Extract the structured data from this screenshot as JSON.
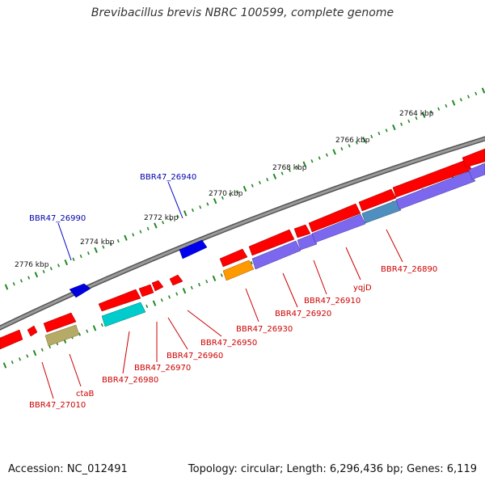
{
  "title": "Brevibacillus brevis NBRC 100599, complete genome",
  "footer": {
    "accession": "Accession: NC_012491",
    "summary": "Topology: circular; Length: 6,296,436 bp; Genes: 6,119"
  },
  "colors": {
    "forward_gene": "#ff0000",
    "reverse_gene": "#0000ff",
    "label_forward": "#cc0000",
    "label_reverse": "#0000aa",
    "ruler_ticks": "#228822",
    "backbone": "#808080",
    "feature_purple": "#7b68ee",
    "feature_cyan": "#00cccc",
    "feature_orange": "#ff9900",
    "feature_olive": "#b5aa66",
    "feature_steel": "#4f8fc0"
  },
  "ruler": {
    "tick_labels": [
      "2776 kbp",
      "2774 kbp",
      "2772 kbp",
      "2770 kbp",
      "2768 kbp",
      "2766 kbp",
      "2764 kbp"
    ]
  },
  "genes": {
    "reverse_labels": [
      "BBR47_26990",
      "BBR47_26940"
    ],
    "forward_labels": [
      "BBR47_27010",
      "ctaB",
      "BBR47_26980",
      "BBR47_26970",
      "BBR47_26960",
      "BBR47_26950",
      "BBR47_26930",
      "BBR47_26920",
      "BBR47_26910",
      "yqjD",
      "BBR47_26890"
    ]
  }
}
